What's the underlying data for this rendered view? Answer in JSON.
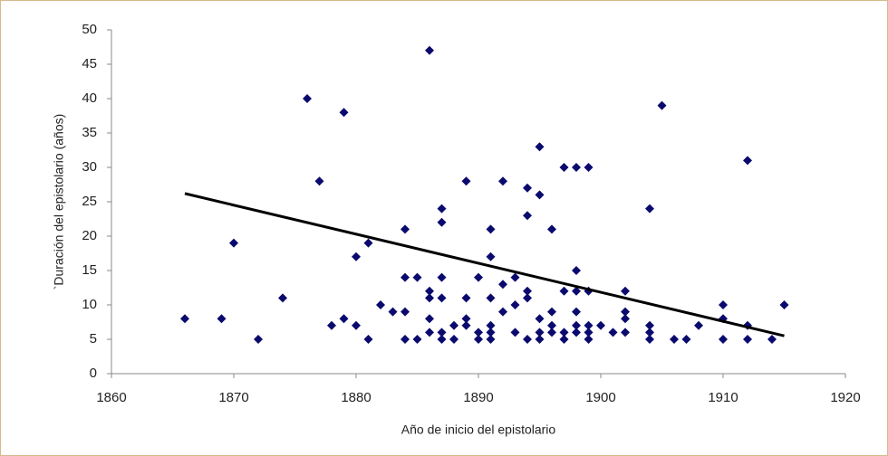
{
  "chart_data": {
    "type": "scatter",
    "x_label": "Año de inicio del epistolario",
    "y_label": "`Duración del epistolario (años)",
    "xlim": [
      1860,
      1920
    ],
    "xticks": [
      1860,
      1870,
      1880,
      1890,
      1900,
      1910,
      1920
    ],
    "ylim": [
      0,
      50
    ],
    "yticks": [
      0,
      5,
      10,
      15,
      20,
      25,
      30,
      35,
      40,
      45,
      50
    ],
    "grid": false,
    "x": [
      1866,
      1869,
      1870,
      1872,
      1874,
      1876,
      1877,
      1878,
      1879,
      1879,
      1880,
      1880,
      1881,
      1881,
      1882,
      1883,
      1884,
      1884,
      1884,
      1884,
      1885,
      1885,
      1886,
      1886,
      1886,
      1886,
      1886,
      1887,
      1887,
      1887,
      1887,
      1887,
      1887,
      1888,
      1888,
      1889,
      1889,
      1889,
      1889,
      1890,
      1890,
      1890,
      1891,
      1891,
      1891,
      1891,
      1891,
      1891,
      1892,
      1892,
      1892,
      1893,
      1893,
      1893,
      1894,
      1894,
      1894,
      1894,
      1894,
      1895,
      1895,
      1895,
      1895,
      1895,
      1896,
      1896,
      1896,
      1896,
      1897,
      1897,
      1897,
      1897,
      1898,
      1898,
      1898,
      1898,
      1898,
      1898,
      1899,
      1899,
      1899,
      1899,
      1899,
      1900,
      1901,
      1902,
      1902,
      1902,
      1902,
      1904,
      1904,
      1904,
      1904,
      1905,
      1906,
      1907,
      1908,
      1910,
      1910,
      1910,
      1912,
      1912,
      1912,
      1914,
      1915
    ],
    "series": [
      {
        "color": "#0a0a6e",
        "values": [
          8,
          8,
          19,
          5,
          11,
          40,
          28,
          7,
          38,
          8,
          17,
          7,
          19,
          5,
          10,
          9,
          21,
          14,
          9,
          5,
          14,
          5,
          47,
          12,
          11,
          8,
          6,
          24,
          22,
          14,
          11,
          6,
          5,
          7,
          5,
          28,
          11,
          8,
          7,
          14,
          6,
          5,
          21,
          17,
          11,
          7,
          6,
          5,
          28,
          13,
          9,
          14,
          10,
          6,
          27,
          23,
          12,
          11,
          5,
          33,
          26,
          8,
          6,
          5,
          21,
          9,
          7,
          6,
          30,
          12,
          6,
          5,
          30,
          15,
          12,
          9,
          7,
          6,
          30,
          12,
          7,
          6,
          5,
          7,
          6,
          12,
          9,
          8,
          6,
          24,
          7,
          6,
          5,
          39,
          5,
          5,
          7,
          10,
          8,
          5,
          31,
          7,
          5,
          5,
          10
        ]
      }
    ],
    "trendline": {
      "color": "#000000",
      "x": [
        1866,
        1915
      ],
      "values": [
        26.2,
        5.5
      ]
    }
  }
}
